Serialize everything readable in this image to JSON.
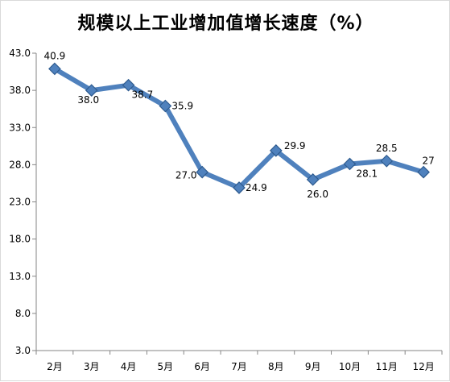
{
  "chart_data": {
    "type": "line",
    "title": "规模以上工业增加值增长速度（%）",
    "xlabel": "",
    "ylabel": "",
    "categories": [
      "2月",
      "3月",
      "4月",
      "5月",
      "6月",
      "7月",
      "8月",
      "9月",
      "10月",
      "11月",
      "12月"
    ],
    "series": [
      {
        "values": [
          40.9,
          38.0,
          38.7,
          35.9,
          27.0,
          24.9,
          29.9,
          26.0,
          28.1,
          28.5,
          27
        ],
        "labels": [
          "40.9",
          "38.0",
          "38.7",
          "35.9",
          "27.0",
          "24.9",
          "29.9",
          "26.0",
          "28.1",
          "28.5",
          "27"
        ]
      }
    ],
    "ylim": [
      3.0,
      43.0
    ],
    "yticks": [
      "43.0",
      "38.0",
      "33.0",
      "28.0",
      "23.0",
      "18.0",
      "13.0",
      "8.0",
      "3.0"
    ],
    "grid": false,
    "colors": {
      "line": "#4f81bd",
      "marker_fill": "#4f81bd",
      "marker_stroke": "#2e5b8f",
      "axis": "#868686"
    }
  }
}
